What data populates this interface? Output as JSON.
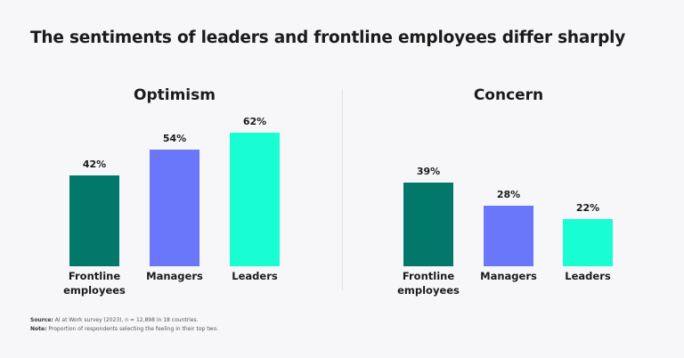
{
  "title": "The sentiments of leaders and frontline employees differ sharply",
  "chart_data": [
    {
      "type": "bar",
      "title": "Optimism",
      "categories": [
        "Frontline employees",
        "Managers",
        "Leaders"
      ],
      "values": [
        42,
        54,
        62
      ],
      "value_labels": [
        "42%",
        "54%",
        "62%"
      ],
      "colors": [
        "#02786b",
        "#6b77fb",
        "#19fdd3"
      ]
    },
    {
      "type": "bar",
      "title": "Concern",
      "categories": [
        "Frontline employees",
        "Managers",
        "Leaders"
      ],
      "values": [
        39,
        28,
        22
      ],
      "value_labels": [
        "39%",
        "28%",
        "22%"
      ],
      "colors": [
        "#02786b",
        "#6b77fb",
        "#19fdd3"
      ]
    }
  ],
  "notes": [
    {
      "label": "Source:",
      "text": "AI at Work survey (2023), n = 12,898 in 18 countries."
    },
    {
      "label": "Note:",
      "text": "Proportion of respondents selecting the feeling in their top two."
    }
  ]
}
